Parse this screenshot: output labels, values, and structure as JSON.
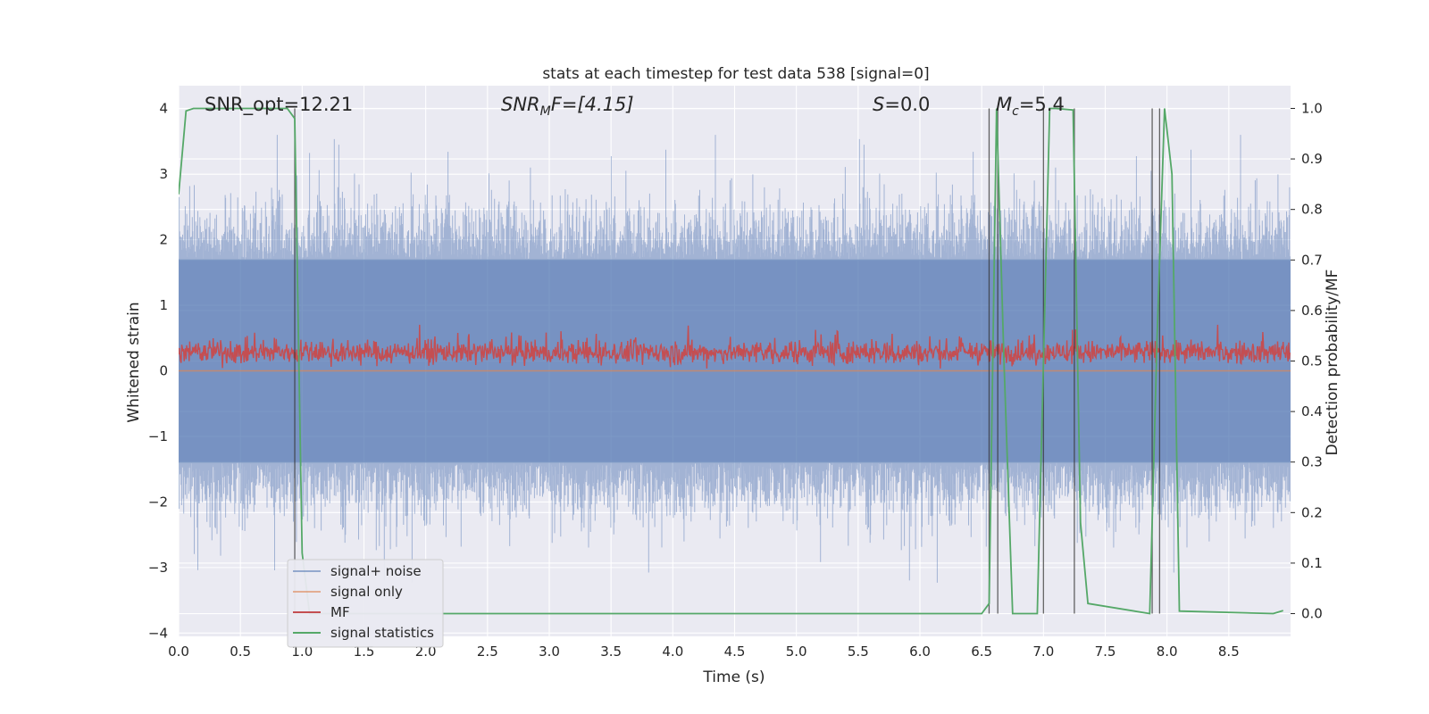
{
  "chart_data": {
    "type": "line",
    "title": "stats at each timestep for test data 538 [signal=0]",
    "xlabel": "Time (s)",
    "ylabel_left": "Whitened strain",
    "ylabel_right": "Detection probability/MF",
    "xlim": [
      0,
      9
    ],
    "ylim_left": [
      -4.05,
      4.35
    ],
    "ylim_right": [
      -0.045,
      1.045
    ],
    "grid": true,
    "background_color": "#eaeaf2",
    "x_ticks": [
      "0.0",
      "0.5",
      "1.0",
      "1.5",
      "2.0",
      "2.5",
      "3.0",
      "3.5",
      "4.0",
      "4.5",
      "5.0",
      "5.5",
      "6.0",
      "6.5",
      "7.0",
      "7.5",
      "8.0",
      "8.5"
    ],
    "y_ticks_left": [
      "4",
      "3",
      "2",
      "1",
      "0",
      "−1",
      "−2",
      "−3",
      "−4"
    ],
    "y_ticks_right": [
      "1.0",
      "0.9",
      "0.8",
      "0.7",
      "0.6",
      "0.5",
      "0.4",
      "0.3",
      "0.2",
      "0.1",
      "0.0"
    ],
    "annotations": {
      "snr_opt": "SNR_opt=12.21",
      "snr_mf_base": "SNR",
      "snr_mf_sub": "M",
      "snr_mf_rest": "F=[4.15]",
      "s_sym": "S",
      "s_rest": "=0.0",
      "mc_sym": "M",
      "mc_sub": "c",
      "mc_rest": "=5.4"
    },
    "series": [
      {
        "name": "signal+ noise",
        "color": "#4c72b0",
        "description_values": {
          "envelope_min": -3.7,
          "envelope_max": 3.6,
          "dense_band": [
            -1.4,
            1.7
          ]
        }
      },
      {
        "name": "signal only",
        "color": "#dd8452",
        "values_constant": 0.0
      },
      {
        "name": "MF",
        "color": "#c44e52",
        "range": [
          0.0,
          0.85
        ]
      },
      {
        "name": "signal statistics",
        "color": "#55a868",
        "x": [
          0.0,
          0.06,
          0.12,
          0.88,
          0.94,
          1.0,
          1.06,
          6.5,
          6.56,
          6.62,
          6.68,
          6.75,
          6.8,
          6.95,
          7.05,
          7.1,
          7.24,
          7.3,
          7.36,
          7.86,
          7.92,
          7.98,
          8.04,
          8.1,
          8.86,
          8.94
        ],
        "y": [
          0.83,
          0.995,
          1.0,
          1.0,
          0.98,
          0.12,
          0.0,
          0.0,
          0.02,
          1.0,
          0.5,
          0.0,
          0.0,
          0.0,
          1.0,
          1.0,
          0.997,
          0.18,
          0.02,
          0.0,
          0.55,
          1.0,
          0.87,
          0.005,
          0.0,
          0.006
        ]
      }
    ],
    "vertical_lines_x": [
      0.94,
      6.56,
      6.63,
      7.0,
      7.25,
      7.88,
      7.94
    ],
    "legend": {
      "placement": "lower-left",
      "entries": [
        {
          "label": "signal+ noise",
          "color": "#4c72b0"
        },
        {
          "label": "signal only",
          "color": "#dd8452"
        },
        {
          "label": "MF",
          "color": "#c44e52"
        },
        {
          "label": "signal statistics",
          "color": "#55a868"
        }
      ]
    }
  }
}
